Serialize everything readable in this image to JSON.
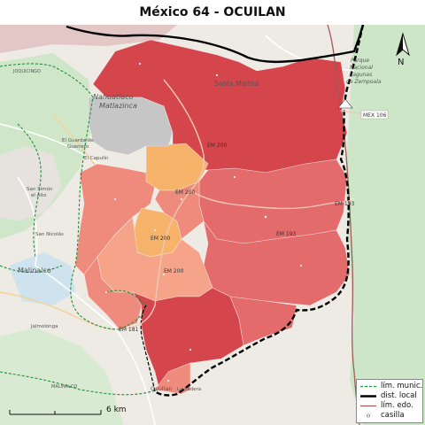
{
  "title": "México 64 - OCUILAN",
  "place_labels": {
    "joquicingo": "JOQUICINGO",
    "nahuatlaco": "Nahuatlaco",
    "matlazinca": "Matlazinca",
    "santa_martha": "Santa Martha",
    "parque_1": "Parque",
    "parque_2": "Nacional",
    "parque_3": "Lagunas",
    "parque_4": "de Zempoala",
    "guarda_1": "El Guarda de",
    "guarda_2": "Guerrero",
    "el_capulin": "El Capulín",
    "san_simon_1": "San Simón",
    "san_simon_2": "el Alto",
    "san_nicolas": "San Nicolás",
    "malinalco": "Malinalco",
    "jalmolonga": "Jalmolonga",
    "malinalco_mun": "MALINALCO",
    "ocuilan": "Ocuilan",
    "la_ladera": "La Ladera"
  },
  "road_labels": {
    "mex106": "MEX 106",
    "em200_a": "EM 200",
    "em200_b": "EM 200",
    "em200_c": "EM 200",
    "em200_d": "EM 200",
    "em193_a": "EM 193",
    "em193_b": "EM 193",
    "em181": "EM 181"
  },
  "north_arrow": "N",
  "scale": {
    "label": "6 km"
  },
  "legend": {
    "items": [
      {
        "label": "lím. munic.",
        "symbol": "green-dashed-line"
      },
      {
        "label": "dist. local",
        "symbol": "thick-black-line"
      },
      {
        "label": "lím. edo.",
        "symbol": "brown-line"
      },
      {
        "label": "casilla",
        "symbol": "small-circle"
      }
    ]
  },
  "colors": {
    "section_dark_red": "#d4454c",
    "section_red": "#e36b6b",
    "section_light_red": "#ee8b7c",
    "section_salmon": "#f5a48a",
    "section_orange": "#f7b36a",
    "section_gray": "#c6c6c6",
    "forest_green": "#cde6c8",
    "municipal_boundary": "#1f8f3a",
    "district_boundary": "#000000",
    "state_boundary": "#a05a5a"
  }
}
